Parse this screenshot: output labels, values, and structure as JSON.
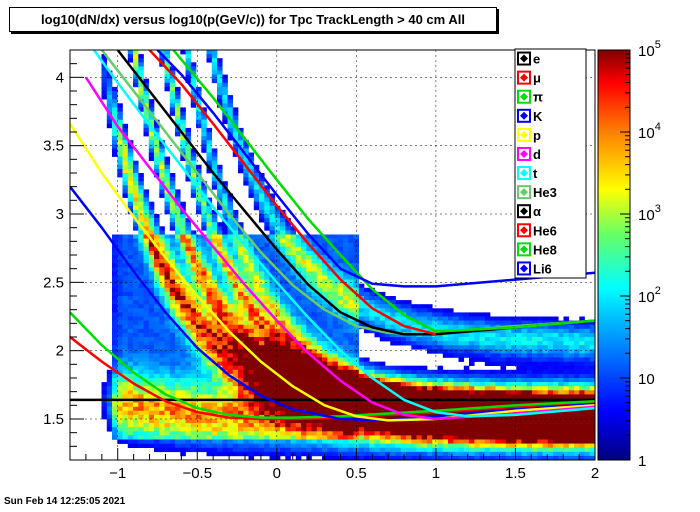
{
  "chart_data": {
    "type": "heatmap",
    "title": "log10(dN/dx) versus log10(p(GeV/c)) for Tpc TrackLength > 40 cm All",
    "xlabel": "",
    "ylabel": "",
    "xlim": [
      -1.3,
      2.0
    ],
    "ylim": [
      1.2,
      4.2
    ],
    "x_ticks": [
      -1,
      -0.5,
      0,
      0.5,
      1,
      1.5,
      2
    ],
    "y_ticks": [
      1.5,
      2,
      2.5,
      3,
      3.5,
      4
    ],
    "z_scale": "log",
    "zlim": [
      1,
      100000
    ],
    "z_ticks": [
      {
        "v": 1,
        "label": "1"
      },
      {
        "v": 10,
        "label": "10"
      },
      {
        "v": 100,
        "label": "10",
        "exp": "2"
      },
      {
        "v": 1000,
        "label": "10",
        "exp": "3"
      },
      {
        "v": 10000,
        "label": "10",
        "exp": "4"
      },
      {
        "v": 100000,
        "label": "10",
        "exp": "5"
      }
    ],
    "grid": true,
    "legend_position": "top-right",
    "bands": [
      {
        "b": 1.5,
        "k": 0.02,
        "w": 0.16,
        "a": 0.55
      },
      {
        "b": 1.5,
        "k": 0.36,
        "w": 0.14,
        "a": 0.7
      },
      {
        "b": 1.5,
        "k": 0.58,
        "w": 0.11,
        "a": 0.6
      },
      {
        "b": 1.5,
        "k": 0.88,
        "w": 0.1,
        "a": 0.55
      },
      {
        "b": 1.5,
        "k": 1.2,
        "w": 0.1,
        "a": 0.4
      },
      {
        "b": 2.05,
        "k": 1.35,
        "w": 0.1,
        "a": 0.4
      }
    ],
    "series": [
      {
        "name": "e",
        "color": "#000000",
        "x": [
          -1.3,
          2.0
        ],
        "y": [
          1.64,
          1.64
        ]
      },
      {
        "name": "μ",
        "color": "#ff0000",
        "x": [
          -1.3,
          -1.1,
          -0.9,
          -0.7,
          -0.5,
          -0.3,
          -0.1,
          0.1,
          0.4,
          0.7,
          1.0,
          1.5,
          2.0
        ],
        "y": [
          2.1,
          1.92,
          1.76,
          1.63,
          1.55,
          1.51,
          1.5,
          1.5,
          1.51,
          1.53,
          1.55,
          1.59,
          1.62
        ]
      },
      {
        "name": "π",
        "color": "#00dd00",
        "x": [
          -1.3,
          -1.1,
          -0.9,
          -0.7,
          -0.5,
          -0.3,
          -0.1,
          0.1,
          0.4,
          0.7,
          1.0,
          1.5,
          2.0
        ],
        "y": [
          2.28,
          2.04,
          1.84,
          1.68,
          1.58,
          1.53,
          1.51,
          1.51,
          1.52,
          1.54,
          1.56,
          1.6,
          1.63
        ]
      },
      {
        "name": "K",
        "color": "#0000ff",
        "x": [
          -1.3,
          -1.1,
          -0.9,
          -0.7,
          -0.5,
          -0.3,
          -0.1,
          0.1,
          0.4,
          0.7,
          1.0,
          1.5,
          2.0
        ],
        "y": [
          3.2,
          2.9,
          2.58,
          2.28,
          2.02,
          1.82,
          1.67,
          1.57,
          1.5,
          1.49,
          1.52,
          1.57,
          1.61
        ]
      },
      {
        "name": "p",
        "color": "#ffff00",
        "x": [
          -1.3,
          -1.1,
          -0.9,
          -0.7,
          -0.5,
          -0.3,
          -0.1,
          0.1,
          0.3,
          0.5,
          0.7,
          1.0,
          1.5,
          2.0
        ],
        "y": [
          3.66,
          3.3,
          2.98,
          2.68,
          2.4,
          2.14,
          1.92,
          1.74,
          1.6,
          1.52,
          1.49,
          1.5,
          1.56,
          1.6
        ]
      },
      {
        "name": "d",
        "color": "#ff00ff",
        "x": [
          -1.2,
          -1.0,
          -0.8,
          -0.6,
          -0.4,
          -0.2,
          0.0,
          0.2,
          0.4,
          0.6,
          0.8,
          1.0,
          1.5,
          2.0
        ],
        "y": [
          4.0,
          3.64,
          3.34,
          3.04,
          2.76,
          2.48,
          2.22,
          1.98,
          1.78,
          1.62,
          1.53,
          1.5,
          1.54,
          1.59
        ]
      },
      {
        "name": "t",
        "color": "#00ffff",
        "x": [
          -1.15,
          -1.0,
          -0.8,
          -0.6,
          -0.4,
          -0.2,
          0.0,
          0.2,
          0.4,
          0.6,
          0.8,
          1.0,
          1.2,
          1.5,
          2.0
        ],
        "y": [
          4.2,
          3.96,
          3.65,
          3.35,
          3.05,
          2.77,
          2.5,
          2.24,
          2.0,
          1.8,
          1.64,
          1.55,
          1.52,
          1.53,
          1.58
        ]
      },
      {
        "name": "He3",
        "color": "#66cc66",
        "x": [
          -1.1,
          -0.9,
          -0.7,
          -0.5,
          -0.3,
          -0.1,
          0.1,
          0.3,
          0.5,
          0.7,
          0.9,
          1.1,
          1.5,
          2.0
        ],
        "y": [
          4.2,
          3.9,
          3.6,
          3.3,
          3.0,
          2.72,
          2.48,
          2.3,
          2.18,
          2.13,
          2.12,
          2.14,
          2.18,
          2.22
        ]
      },
      {
        "name": "α",
        "color": "#000000",
        "x": [
          -1.0,
          -0.8,
          -0.6,
          -0.4,
          -0.2,
          0.0,
          0.2,
          0.4,
          0.6,
          0.8,
          1.0,
          1.5,
          2.0
        ],
        "y": [
          4.2,
          3.9,
          3.6,
          3.3,
          3.02,
          2.74,
          2.48,
          2.28,
          2.17,
          2.12,
          2.12,
          2.17,
          2.22
        ]
      },
      {
        "name": "He6",
        "color": "#ff0000",
        "x": [
          -0.8,
          -0.6,
          -0.4,
          -0.2,
          0.0,
          0.2,
          0.4,
          0.6,
          0.8,
          1.0
        ],
        "y": [
          4.2,
          3.95,
          3.66,
          3.36,
          3.06,
          2.78,
          2.52,
          2.31,
          2.18,
          2.12
        ]
      },
      {
        "name": "He8",
        "color": "#00dd00",
        "x": [
          -0.65,
          -0.4,
          -0.2,
          0.0,
          0.2,
          0.4,
          0.6,
          0.8,
          1.0,
          1.5,
          2.0
        ],
        "y": [
          4.2,
          3.85,
          3.55,
          3.25,
          2.96,
          2.7,
          2.45,
          2.26,
          2.14,
          2.17,
          2.22
        ]
      },
      {
        "name": "Li6",
        "color": "#0000ff",
        "x": [
          -0.75,
          -0.6,
          -0.4,
          -0.2,
          0.0,
          0.2,
          0.4,
          0.6,
          0.8,
          1.0,
          1.5,
          2.0
        ],
        "y": [
          4.2,
          4.02,
          3.74,
          3.44,
          3.14,
          2.85,
          2.6,
          2.49,
          2.47,
          2.47,
          2.52,
          2.57
        ]
      }
    ]
  },
  "timestamp": "Sun Feb 14 12:25:05 2021"
}
